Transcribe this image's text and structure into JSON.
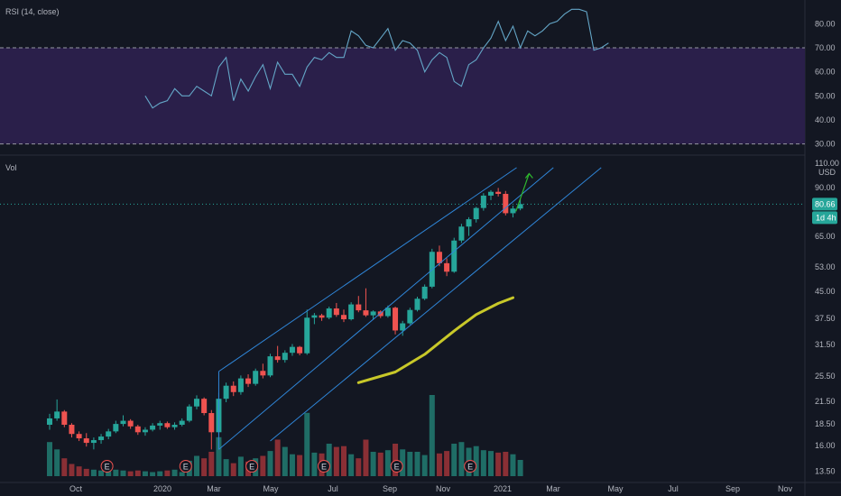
{
  "rsi_panel": {
    "label": "RSI (14, close)",
    "ticks": [
      "80.00",
      "70.00",
      "60.00",
      "50.00",
      "40.00",
      "30.00"
    ],
    "tick_values": [
      80,
      70,
      60,
      50,
      40,
      30
    ],
    "upper_band": 70,
    "lower_band": 30,
    "band_color": "#2a1f4a",
    "line_color": "#64a6c7"
  },
  "price_panel": {
    "vol_label": "Vol",
    "currency": "USD",
    "top_tick": "110.00",
    "ticks": [
      "90.00",
      "65.00",
      "53.00",
      "45.00",
      "37.50",
      "31.50",
      "25.50",
      "21.50",
      "18.50",
      "16.00",
      "13.50"
    ],
    "tick_values": [
      90,
      65,
      53,
      45,
      37.5,
      31.5,
      25.5,
      21.5,
      18.5,
      16,
      13.5
    ],
    "last_price": "80.66",
    "countdown": "1d 4h",
    "badge_color": "#26a69a",
    "up_color": "#26a69a",
    "down_color": "#ef5350",
    "earnings_marker": "E"
  },
  "x_axis": {
    "labels": [
      "Oct",
      "2020",
      "Mar",
      "May",
      "Jul",
      "Sep",
      "Nov",
      "2021",
      "Mar",
      "May",
      "Jul",
      "Sep",
      "Nov"
    ]
  },
  "chart_data": {
    "type": "candlestick",
    "scale": "log",
    "y_range": [
      12.5,
      110
    ],
    "rsi_range": [
      28,
      88
    ],
    "candles": [
      {
        "o": 18.4,
        "h": 19.8,
        "l": 17.8,
        "c": 19.2
      },
      {
        "o": 19.2,
        "h": 21.8,
        "l": 18.9,
        "c": 20.1
      },
      {
        "o": 20.1,
        "h": 20.3,
        "l": 18.1,
        "c": 18.4
      },
      {
        "o": 18.4,
        "h": 18.6,
        "l": 16.9,
        "c": 17.3
      },
      {
        "o": 17.3,
        "h": 17.6,
        "l": 16.5,
        "c": 16.8
      },
      {
        "o": 16.8,
        "h": 17.4,
        "l": 15.9,
        "c": 16.3
      },
      {
        "o": 16.3,
        "h": 16.9,
        "l": 15.6,
        "c": 16.6
      },
      {
        "o": 16.6,
        "h": 17.3,
        "l": 16.2,
        "c": 17.0
      },
      {
        "o": 17.0,
        "h": 17.9,
        "l": 16.7,
        "c": 17.6
      },
      {
        "o": 17.6,
        "h": 18.9,
        "l": 17.4,
        "c": 18.5
      },
      {
        "o": 18.5,
        "h": 19.6,
        "l": 18.2,
        "c": 18.9
      },
      {
        "o": 18.9,
        "h": 19.1,
        "l": 17.9,
        "c": 18.2
      },
      {
        "o": 18.2,
        "h": 18.4,
        "l": 17.2,
        "c": 17.5
      },
      {
        "o": 17.5,
        "h": 18.1,
        "l": 17.1,
        "c": 17.8
      },
      {
        "o": 17.8,
        "h": 18.6,
        "l": 17.6,
        "c": 18.3
      },
      {
        "o": 18.3,
        "h": 18.9,
        "l": 17.8,
        "c": 18.6
      },
      {
        "o": 18.6,
        "h": 18.8,
        "l": 17.9,
        "c": 18.1
      },
      {
        "o": 18.1,
        "h": 18.7,
        "l": 17.8,
        "c": 18.4
      },
      {
        "o": 18.4,
        "h": 19.2,
        "l": 18.2,
        "c": 18.9
      },
      {
        "o": 18.9,
        "h": 21.1,
        "l": 18.7,
        "c": 20.8
      },
      {
        "o": 20.8,
        "h": 22.4,
        "l": 20.4,
        "c": 21.9
      },
      {
        "o": 21.9,
        "h": 22.1,
        "l": 19.6,
        "c": 19.9
      },
      {
        "o": 19.9,
        "h": 20.3,
        "l": 15.6,
        "c": 17.5
      },
      {
        "o": 17.5,
        "h": 22.8,
        "l": 17.2,
        "c": 21.9
      },
      {
        "o": 21.9,
        "h": 24.4,
        "l": 21.4,
        "c": 23.9
      },
      {
        "o": 23.9,
        "h": 24.6,
        "l": 22.3,
        "c": 22.9
      },
      {
        "o": 22.9,
        "h": 25.6,
        "l": 22.5,
        "c": 25.1
      },
      {
        "o": 25.1,
        "h": 25.8,
        "l": 23.7,
        "c": 24.2
      },
      {
        "o": 24.2,
        "h": 26.8,
        "l": 23.9,
        "c": 26.4
      },
      {
        "o": 26.4,
        "h": 27.7,
        "l": 25.1,
        "c": 25.6
      },
      {
        "o": 25.6,
        "h": 29.6,
        "l": 25.3,
        "c": 29.1
      },
      {
        "o": 29.1,
        "h": 31.2,
        "l": 27.9,
        "c": 28.4
      },
      {
        "o": 28.4,
        "h": 30.3,
        "l": 27.9,
        "c": 29.8
      },
      {
        "o": 29.8,
        "h": 31.6,
        "l": 29.2,
        "c": 31.0
      },
      {
        "o": 31.0,
        "h": 31.2,
        "l": 29.3,
        "c": 29.7
      },
      {
        "o": 29.7,
        "h": 39.8,
        "l": 29.4,
        "c": 37.7
      },
      {
        "o": 37.7,
        "h": 38.9,
        "l": 36.1,
        "c": 38.3
      },
      {
        "o": 38.3,
        "h": 38.7,
        "l": 36.9,
        "c": 37.7
      },
      {
        "o": 37.7,
        "h": 40.6,
        "l": 37.3,
        "c": 40.1
      },
      {
        "o": 40.1,
        "h": 41.6,
        "l": 37.9,
        "c": 38.4
      },
      {
        "o": 38.4,
        "h": 39.8,
        "l": 36.6,
        "c": 37.3
      },
      {
        "o": 37.3,
        "h": 41.8,
        "l": 37.0,
        "c": 41.2
      },
      {
        "o": 41.2,
        "h": 43.6,
        "l": 39.1,
        "c": 39.6
      },
      {
        "o": 39.6,
        "h": 45.9,
        "l": 37.9,
        "c": 38.3
      },
      {
        "o": 38.3,
        "h": 39.6,
        "l": 37.3,
        "c": 39.3
      },
      {
        "o": 39.3,
        "h": 39.6,
        "l": 37.6,
        "c": 38.1
      },
      {
        "o": 38.1,
        "h": 40.9,
        "l": 37.7,
        "c": 40.3
      },
      {
        "o": 40.3,
        "h": 40.6,
        "l": 33.7,
        "c": 34.6
      },
      {
        "o": 34.6,
        "h": 36.9,
        "l": 33.4,
        "c": 36.3
      },
      {
        "o": 36.3,
        "h": 40.3,
        "l": 36.0,
        "c": 39.7
      },
      {
        "o": 39.7,
        "h": 43.4,
        "l": 39.3,
        "c": 42.8
      },
      {
        "o": 42.8,
        "h": 47.1,
        "l": 42.4,
        "c": 46.4
      },
      {
        "o": 46.4,
        "h": 59.8,
        "l": 45.9,
        "c": 58.6
      },
      {
        "o": 58.6,
        "h": 61.1,
        "l": 53.2,
        "c": 54.3
      },
      {
        "o": 54.3,
        "h": 56.1,
        "l": 49.8,
        "c": 51.3
      },
      {
        "o": 51.3,
        "h": 64.4,
        "l": 50.9,
        "c": 63.2
      },
      {
        "o": 63.2,
        "h": 70.7,
        "l": 62.2,
        "c": 69.4
      },
      {
        "o": 69.4,
        "h": 73.9,
        "l": 65.2,
        "c": 72.9
      },
      {
        "o": 72.9,
        "h": 79.2,
        "l": 71.3,
        "c": 78.6
      },
      {
        "o": 78.6,
        "h": 86.8,
        "l": 77.2,
        "c": 85.4
      },
      {
        "o": 85.4,
        "h": 88.6,
        "l": 82.9,
        "c": 87.6
      },
      {
        "o": 87.6,
        "h": 89.9,
        "l": 84.9,
        "c": 86.4
      },
      {
        "o": 86.4,
        "h": 88.1,
        "l": 74.8,
        "c": 75.9
      },
      {
        "o": 75.9,
        "h": 79.8,
        "l": 73.8,
        "c": 78.3
      },
      {
        "o": 78.3,
        "h": 83.4,
        "l": 77.4,
        "c": 80.7
      }
    ],
    "volume": [
      0.42,
      0.33,
      0.22,
      0.15,
      0.12,
      0.09,
      0.08,
      0.07,
      0.06,
      0.08,
      0.07,
      0.06,
      0.07,
      0.06,
      0.05,
      0.06,
      0.07,
      0.08,
      0.05,
      0.19,
      0.25,
      0.22,
      0.3,
      0.48,
      0.21,
      0.16,
      0.24,
      0.18,
      0.22,
      0.25,
      0.31,
      0.45,
      0.36,
      0.27,
      0.26,
      0.78,
      0.29,
      0.28,
      0.4,
      0.36,
      0.37,
      0.27,
      0.22,
      0.45,
      0.3,
      0.29,
      0.32,
      0.4,
      0.33,
      0.3,
      0.3,
      0.26,
      1.0,
      0.28,
      0.31,
      0.4,
      0.42,
      0.35,
      0.37,
      0.32,
      0.31,
      0.29,
      0.3,
      0.27,
      0.2
    ],
    "rsi": [
      50,
      45,
      47,
      48,
      53,
      50,
      50,
      54,
      52,
      50,
      62,
      66,
      48,
      57,
      52,
      58,
      63,
      53,
      64,
      59,
      59,
      54,
      62,
      66,
      65,
      68,
      66,
      66,
      77,
      75,
      71,
      70,
      74,
      78,
      69,
      73,
      72,
      69,
      60,
      65,
      68,
      66,
      56,
      54,
      63,
      65,
      70,
      74,
      81,
      73,
      79,
      70,
      77,
      75,
      77,
      80,
      81,
      84,
      86,
      86,
      85,
      69,
      70,
      72
    ],
    "channels": [
      {
        "p1": {
          "i": 23,
          "v": 26.3
        },
        "p2": {
          "i": 63.5,
          "v": 103
        }
      },
      {
        "p1": {
          "i": 23,
          "v": 15.6
        },
        "p2": {
          "i": 68.5,
          "v": 103
        }
      },
      {
        "p1": {
          "i": 30,
          "v": 16.5
        },
        "p2": {
          "i": 75,
          "v": 103
        }
      }
    ],
    "moving_average": [
      {
        "i": 42,
        "v": 24.4
      },
      {
        "i": 47,
        "v": 26.2
      },
      {
        "i": 51,
        "v": 29.5
      },
      {
        "i": 55,
        "v": 34.5
      },
      {
        "i": 58,
        "v": 38.5
      },
      {
        "i": 61,
        "v": 41.5
      },
      {
        "i": 63,
        "v": 43.1
      }
    ],
    "projection_arrow": {
      "from": {
        "i": 63.4,
        "v": 76.8
      },
      "to": {
        "i": 65.2,
        "v": 99
      }
    },
    "earnings": [
      7.8,
      18.5,
      27.5,
      37.3,
      47.2,
      57.2
    ]
  }
}
